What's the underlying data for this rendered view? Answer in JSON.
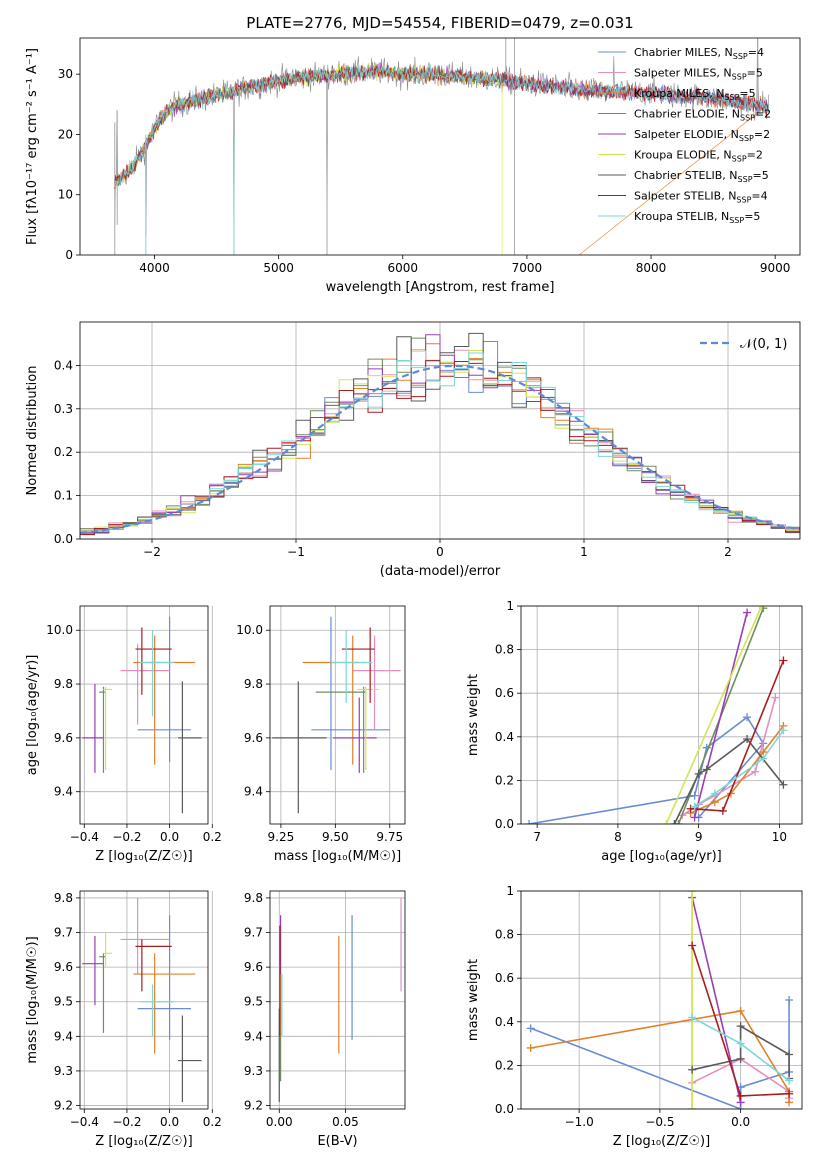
{
  "title": "PLATE=2776, MJD=54554, FIBERID=0479, z=0.031",
  "colors": [
    "#6a8cd6",
    "#e58fbf",
    "#e0812a",
    "#6e8f5c",
    "#9b3db5",
    "#d4e35a",
    "#5a5a5a",
    "#a51f1f",
    "#7fd6d9"
  ],
  "legend": [
    {
      "label": "Chabrier MILES, N",
      "sub": "SSP",
      "n": "=4"
    },
    {
      "label": "Salpeter MILES, N",
      "sub": "SSP",
      "n": "=5"
    },
    {
      "label": "Kroupa MILES, N",
      "sub": "SSP",
      "n": "=5"
    },
    {
      "label": "Chabrier ELODIE, N",
      "sub": "SSP",
      "n": "=2"
    },
    {
      "label": "Salpeter ELODIE, N",
      "sub": "SSP",
      "n": "=2"
    },
    {
      "label": "Kroupa ELODIE, N",
      "sub": "SSP",
      "n": "=2"
    },
    {
      "label": "Chabrier STELIB, N",
      "sub": "SSP",
      "n": "=5"
    },
    {
      "label": "Salpeter STELIB, N",
      "sub": "SSP",
      "n": "=4"
    },
    {
      "label": "Kroupa STELIB, N",
      "sub": "SSP",
      "n": "=5"
    }
  ],
  "chart_data": [
    {
      "id": "spectrum",
      "type": "line",
      "xlabel": "wavelength [Angstrom, rest frame]",
      "ylabel": "Flux [fλ10⁻¹⁷ erg cm⁻² s⁻¹ A⁻¹]",
      "xlim": [
        3400,
        9200
      ],
      "ylim": [
        0,
        36
      ],
      "xticks": [
        4000,
        5000,
        6000,
        7000,
        8000,
        9000
      ],
      "yticks": [
        0,
        10,
        20,
        30
      ],
      "continuum": [
        [
          3680,
          12
        ],
        [
          3800,
          14
        ],
        [
          3900,
          17
        ],
        [
          4000,
          21
        ],
        [
          4100,
          24
        ],
        [
          4200,
          25
        ],
        [
          4400,
          26
        ],
        [
          4600,
          27
        ],
        [
          4800,
          28
        ],
        [
          5000,
          29
        ],
        [
          5200,
          29.5
        ],
        [
          5500,
          30
        ],
        [
          5800,
          30.5
        ],
        [
          6000,
          30
        ],
        [
          6200,
          30
        ],
        [
          6500,
          29.5
        ],
        [
          6800,
          29
        ],
        [
          7000,
          28.5
        ],
        [
          7200,
          28
        ],
        [
          7400,
          27.5
        ],
        [
          7600,
          27
        ],
        [
          7800,
          27
        ],
        [
          8000,
          27
        ],
        [
          8200,
          26.5
        ],
        [
          8500,
          26
        ],
        [
          8800,
          25
        ],
        [
          8950,
          24.5
        ]
      ],
      "model_ends": [
        8900,
        8950,
        8950,
        6800,
        8950,
        6800,
        8950,
        8950,
        8950
      ],
      "drops": [
        {
          "series": 2,
          "x": 7420
        },
        {
          "series": 5,
          "x": 6800
        }
      ]
    },
    {
      "id": "residuals",
      "type": "histogram",
      "xlabel": "(data-model)/error",
      "ylabel": "Normed distribution",
      "xlim": [
        -2.5,
        2.5
      ],
      "ylim": [
        0,
        0.5
      ],
      "xticks": [
        -2,
        -1,
        0,
        1,
        2
      ],
      "yticks": [
        0,
        0.1,
        0.2,
        0.3,
        0.4
      ],
      "legend": "𝒩(0, 1)",
      "bins": [
        -2.5,
        2.5,
        50
      ]
    },
    {
      "id": "age_vs_Z",
      "type": "scatter",
      "xlabel": "Z [log₁₀(Z/Z☉)]",
      "ylabel": "age  [log₁₀(age/yr)]",
      "xlim": [
        -0.42,
        0.18
      ],
      "ylim": [
        9.28,
        10.09
      ],
      "xticks": [
        -0.4,
        -0.2,
        0.0,
        0.2
      ],
      "yticks": [
        9.4,
        9.6,
        9.8,
        10.0
      ],
      "points": [
        {
          "x": 0.0,
          "xerr": [
            0.15,
            0.1
          ],
          "y": 9.63,
          "yerr": [
            0.12,
            0.42
          ]
        },
        {
          "x": -0.15,
          "xerr": [
            0.08,
            0.15
          ],
          "y": 9.85,
          "yerr": [
            0.2,
            0.1
          ]
        },
        {
          "x": -0.07,
          "xerr": [
            0.1,
            0.19
          ],
          "y": 9.88,
          "yerr": [
            0.38,
            0.1
          ]
        },
        {
          "x": -0.31,
          "xerr": [
            0.02,
            0.01
          ],
          "y": 9.77,
          "yerr": [
            0.3,
            0.02
          ]
        },
        {
          "x": -0.35,
          "xerr": [
            0.06,
            0.04
          ],
          "y": 9.6,
          "yerr": [
            0.13,
            0.2
          ]
        },
        {
          "x": -0.3,
          "xerr": [
            0.01,
            0.03
          ],
          "y": 9.78,
          "yerr": [
            0.3,
            0.01
          ]
        },
        {
          "x": 0.06,
          "xerr": [
            0.02,
            0.09
          ],
          "y": 9.6,
          "yerr": [
            0.28,
            0.21
          ]
        },
        {
          "x": -0.13,
          "xerr": [
            0.03,
            0.14
          ],
          "y": 9.93,
          "yerr": [
            0.17,
            0.08
          ]
        },
        {
          "x": -0.08,
          "xerr": [
            0.06,
            0.1
          ],
          "y": 9.88,
          "yerr": [
            0.2,
            0.12
          ]
        }
      ]
    },
    {
      "id": "age_vs_mass",
      "type": "scatter",
      "xlabel": "mass [log₁₀(M/M☉)]",
      "ylabel": "",
      "xlim": [
        9.2,
        9.82
      ],
      "ylim": [
        9.28,
        10.09
      ],
      "xticks": [
        9.25,
        9.5,
        9.75
      ],
      "yticks": [
        9.4,
        9.6,
        9.8,
        10.0
      ],
      "points": [
        {
          "x": 9.48,
          "xerr": [
            0.09,
            0.27
          ],
          "y": 9.63,
          "yerr": [
            0.15,
            0.42
          ]
        },
        {
          "x": 9.68,
          "xerr": [
            0.1,
            0.12
          ],
          "y": 9.85,
          "yerr": [
            0.22,
            0.13
          ]
        },
        {
          "x": 9.58,
          "xerr": [
            0.23,
            0.06
          ],
          "y": 9.88,
          "yerr": [
            0.38,
            0.1
          ]
        },
        {
          "x": 9.63,
          "xerr": [
            0.22,
            0.01
          ],
          "y": 9.77,
          "yerr": [
            0.3,
            0.02
          ]
        },
        {
          "x": 9.61,
          "xerr": [
            0.12,
            0.08
          ],
          "y": 9.6,
          "yerr": [
            0.13,
            0.15
          ]
        },
        {
          "x": 9.64,
          "xerr": [
            0.04,
            0.06
          ],
          "y": 9.78,
          "yerr": [
            0.3,
            0.01
          ]
        },
        {
          "x": 9.33,
          "xerr": [
            0.12,
            0.13
          ],
          "y": 9.6,
          "yerr": [
            0.28,
            0.21
          ]
        },
        {
          "x": 9.66,
          "xerr": [
            0.13,
            0.02
          ],
          "y": 9.93,
          "yerr": [
            0.2,
            0.08
          ]
        },
        {
          "x": 9.55,
          "xerr": [
            0.07,
            0.12
          ],
          "y": 9.88,
          "yerr": [
            0.15,
            0.12
          ]
        }
      ]
    },
    {
      "id": "weight_vs_age",
      "type": "line",
      "xlabel": "age  [log₁₀(age/yr)]",
      "ylabel": "mass weight",
      "xlim": [
        6.8,
        10.28
      ],
      "ylim": [
        0,
        1
      ],
      "xticks": [
        7,
        8,
        9,
        10
      ],
      "yticks": [
        0.0,
        0.2,
        0.4,
        0.6,
        0.8,
        1.0
      ],
      "series": [
        [
          [
            6.9,
            0.0
          ],
          [
            8.95,
            0.13
          ],
          [
            9.1,
            0.35
          ],
          [
            9.6,
            0.49
          ],
          [
            9.8,
            0.37
          ],
          [
            9.0,
            0.03
          ]
        ],
        [
          [
            8.8,
            0.04
          ],
          [
            9.0,
            0.09
          ],
          [
            9.2,
            0.13
          ],
          [
            9.7,
            0.24
          ],
          [
            9.95,
            0.58
          ]
        ],
        [
          [
            8.9,
            0.05
          ],
          [
            9.2,
            0.1
          ],
          [
            9.4,
            0.14
          ],
          [
            9.8,
            0.33
          ],
          [
            10.05,
            0.45
          ]
        ],
        [
          [
            8.75,
            0.0
          ],
          [
            9.8,
            0.99
          ]
        ],
        [
          [
            8.95,
            0.03
          ],
          [
            9.6,
            0.97
          ]
        ],
        [
          [
            8.6,
            0.0
          ],
          [
            9.78,
            1.0
          ]
        ],
        [
          [
            8.7,
            0.0
          ],
          [
            9.0,
            0.23
          ],
          [
            9.1,
            0.25
          ],
          [
            9.6,
            0.39
          ],
          [
            10.05,
            0.18
          ]
        ],
        [
          [
            8.9,
            0.07
          ],
          [
            9.3,
            0.06
          ],
          [
            10.05,
            0.75
          ]
        ],
        [
          [
            8.95,
            0.08
          ],
          [
            9.2,
            0.14
          ],
          [
            9.8,
            0.3
          ],
          [
            10.05,
            0.43
          ]
        ]
      ]
    },
    {
      "id": "mass_vs_Z",
      "type": "scatter",
      "xlabel": "Z [log₁₀(Z/Z☉)]",
      "ylabel": "mass [log₁₀(M/M☉)]",
      "xlim": [
        -0.42,
        0.18
      ],
      "ylim": [
        9.19,
        9.82
      ],
      "xticks": [
        -0.4,
        -0.2,
        0.0,
        0.2
      ],
      "yticks": [
        9.2,
        9.3,
        9.4,
        9.5,
        9.6,
        9.7,
        9.8
      ],
      "points": [
        {
          "x": 0.0,
          "xerr": [
            0.15,
            0.1
          ],
          "y": 9.48,
          "yerr": [
            0.09,
            0.27
          ]
        },
        {
          "x": -0.15,
          "xerr": [
            0.08,
            0.15
          ],
          "y": 9.68,
          "yerr": [
            0.1,
            0.12
          ]
        },
        {
          "x": -0.07,
          "xerr": [
            0.1,
            0.19
          ],
          "y": 9.58,
          "yerr": [
            0.23,
            0.06
          ]
        },
        {
          "x": -0.31,
          "xerr": [
            0.02,
            0.01
          ],
          "y": 9.63,
          "yerr": [
            0.22,
            0.01
          ]
        },
        {
          "x": -0.35,
          "xerr": [
            0.06,
            0.04
          ],
          "y": 9.61,
          "yerr": [
            0.12,
            0.08
          ]
        },
        {
          "x": -0.3,
          "xerr": [
            0.01,
            0.03
          ],
          "y": 9.64,
          "yerr": [
            0.04,
            0.06
          ]
        },
        {
          "x": 0.06,
          "xerr": [
            0.02,
            0.09
          ],
          "y": 9.33,
          "yerr": [
            0.12,
            0.13
          ]
        },
        {
          "x": -0.13,
          "xerr": [
            0.03,
            0.14
          ],
          "y": 9.66,
          "yerr": [
            0.13,
            0.02
          ]
        },
        {
          "x": -0.08,
          "xerr": [
            0.06,
            0.1
          ],
          "y": 9.5,
          "yerr": [
            0.1,
            0.05
          ]
        }
      ]
    },
    {
      "id": "mass_vs_ebv",
      "type": "errorbar",
      "xlabel": "E(B-V)",
      "ylabel": "",
      "xlim": [
        -0.007,
        0.095
      ],
      "ylim": [
        9.19,
        9.82
      ],
      "xticks": [
        0.0,
        0.05
      ],
      "yticks": [
        9.2,
        9.3,
        9.4,
        9.5,
        9.6,
        9.7,
        9.8
      ],
      "points": [
        {
          "x": 0.055,
          "y": 9.48,
          "yerr": [
            0.09,
            0.27
          ]
        },
        {
          "x": 0.092,
          "y": 9.68,
          "yerr": [
            0.15,
            0.12
          ]
        },
        {
          "x": 0.045,
          "y": 9.52,
          "yerr": [
            0.17,
            0.17
          ]
        },
        {
          "x": 0.001,
          "y": 9.49,
          "yerr": [
            0.22,
            0.05
          ]
        },
        {
          "x": 0.001,
          "y": 9.55,
          "yerr": [
            0.12,
            0.2
          ]
        },
        {
          "x": 0.0015,
          "y": 9.49,
          "yerr": [
            0.09,
            0.09
          ]
        },
        {
          "x": 0.0,
          "y": 9.35,
          "yerr": [
            0.14,
            0.13
          ]
        },
        {
          "x": 0.0005,
          "y": 9.54,
          "yerr": [
            0.14,
            0.18
          ]
        },
        {
          "x": 0.002,
          "y": 9.48,
          "yerr": [
            0.08,
            0.1
          ]
        }
      ]
    },
    {
      "id": "weight_vs_Z",
      "type": "line",
      "xlabel": "Z [log₁₀(Z/Z☉)]",
      "ylabel": "mass weight",
      "xlim": [
        -1.36,
        0.38
      ],
      "ylim": [
        0,
        1
      ],
      "xticks": [
        -1.0,
        -0.5,
        0.0
      ],
      "yticks": [
        0.0,
        0.2,
        0.4,
        0.6,
        0.8,
        1.0
      ],
      "series": [
        [
          [
            -1.3,
            0.37
          ],
          [
            0.0,
            0.0
          ],
          [
            0.0,
            0.1
          ],
          [
            0.3,
            0.17
          ],
          [
            0.3,
            0.5
          ]
        ],
        [
          [
            -0.3,
            0.12
          ],
          [
            0.0,
            0.23
          ],
          [
            0.3,
            0.08
          ],
          [
            0.3,
            0.05
          ]
        ],
        [
          [
            -1.3,
            0.28
          ],
          [
            0.0,
            0.45
          ],
          [
            0.3,
            0.08
          ],
          [
            0.3,
            0.03
          ]
        ],
        [
          [
            -0.3,
            0.0
          ],
          [
            -0.3,
            1.0
          ]
        ],
        [
          [
            -0.3,
            0.97
          ],
          [
            0.0,
            0.03
          ]
        ],
        [
          [
            -0.3,
            0.0
          ],
          [
            -0.3,
            1.0
          ]
        ],
        [
          [
            -0.3,
            0.18
          ],
          [
            0.0,
            0.23
          ],
          [
            0.0,
            0.38
          ],
          [
            0.3,
            0.25
          ],
          [
            0.3,
            0.14
          ]
        ],
        [
          [
            -0.3,
            0.75
          ],
          [
            0.0,
            0.06
          ],
          [
            0.3,
            0.07
          ]
        ],
        [
          [
            -0.3,
            0.42
          ],
          [
            0.0,
            0.3
          ],
          [
            0.3,
            0.13
          ]
        ]
      ]
    }
  ]
}
